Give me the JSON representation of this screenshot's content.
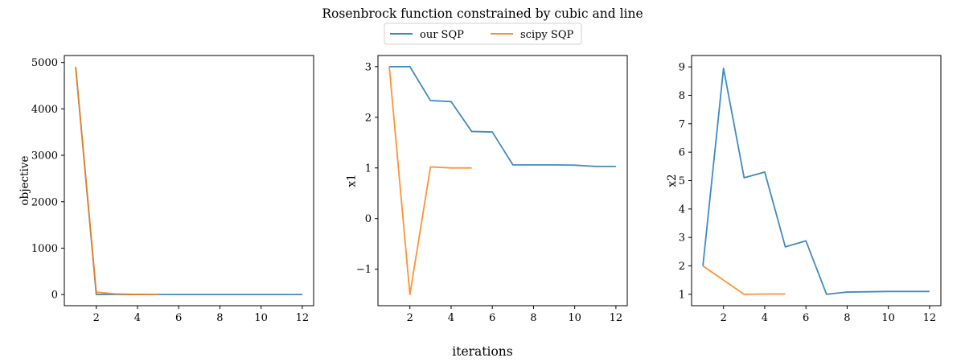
{
  "figure": {
    "title": "Rosenbrock function constrained by cubic and line",
    "xlabel": "iterations",
    "legend": {
      "placement": "top-center",
      "entries": [
        "our SQP",
        "scipy SQP"
      ]
    }
  },
  "colors": {
    "our_sqp": "#1f77b4",
    "scipy_sqp": "#ff7f0e"
  },
  "chart_data": [
    {
      "type": "line",
      "ylabel": "objective",
      "xlim": [
        0.45,
        12.55
      ],
      "ylim": [
        -240,
        5150
      ],
      "xticks": [
        2,
        4,
        6,
        8,
        10,
        12
      ],
      "xtick_labels": [
        "2",
        "4",
        "6",
        "8",
        "10",
        "12"
      ],
      "yticks": [
        0,
        1000,
        2000,
        3000,
        4000,
        5000
      ],
      "ytick_labels": [
        "0",
        "1000",
        "2000",
        "3000",
        "4000",
        "5000"
      ],
      "grid": false,
      "series": [
        {
          "name": "our SQP",
          "x": [
            1,
            2,
            3,
            4,
            5,
            6,
            7,
            8,
            9,
            10,
            11,
            12
          ],
          "y": [
            4904,
            4,
            3,
            2,
            1,
            0.5,
            0.3,
            0.2,
            0.1,
            0.05,
            0.02,
            0.01
          ]
        },
        {
          "name": "scipy SQP",
          "x": [
            1,
            2,
            3,
            4,
            5
          ],
          "y": [
            4904,
            52,
            12,
            2,
            0.5
          ]
        }
      ]
    },
    {
      "type": "line",
      "ylabel": "x1",
      "xlim": [
        0.45,
        12.55
      ],
      "ylim": [
        -1.72,
        3.22
      ],
      "xticks": [
        2,
        4,
        6,
        8,
        10,
        12
      ],
      "xtick_labels": [
        "2",
        "4",
        "6",
        "8",
        "10",
        "12"
      ],
      "yticks": [
        -1,
        0,
        1,
        2,
        3
      ],
      "ytick_labels": [
        "−1",
        "0",
        "1",
        "2",
        "3"
      ],
      "grid": false,
      "series": [
        {
          "name": "our SQP",
          "x": [
            1,
            2,
            3,
            4,
            5,
            6,
            7,
            8,
            9,
            10,
            11,
            12
          ],
          "y": [
            3.0,
            3.0,
            2.33,
            2.31,
            1.72,
            1.71,
            1.06,
            1.06,
            1.06,
            1.055,
            1.03,
            1.03
          ]
        },
        {
          "name": "scipy SQP",
          "x": [
            1,
            2,
            3,
            4,
            5
          ],
          "y": [
            3.0,
            -1.5,
            1.02,
            1.0,
            1.0
          ]
        }
      ]
    },
    {
      "type": "line",
      "ylabel": "x2",
      "xlim": [
        0.45,
        12.55
      ],
      "ylim": [
        0.6,
        9.4
      ],
      "xticks": [
        2,
        4,
        6,
        8,
        10,
        12
      ],
      "xtick_labels": [
        "2",
        "4",
        "6",
        "8",
        "10",
        "12"
      ],
      "yticks": [
        1,
        2,
        3,
        4,
        5,
        6,
        7,
        8,
        9
      ],
      "ytick_labels": [
        "1",
        "2",
        "3",
        "4",
        "5",
        "6",
        "7",
        "8",
        "9"
      ],
      "grid": false,
      "series": [
        {
          "name": "our SQP",
          "x": [
            1,
            2,
            3,
            4,
            5,
            6,
            7,
            8,
            9,
            10,
            11,
            12
          ],
          "y": [
            2.0,
            8.95,
            5.1,
            5.3,
            2.67,
            2.88,
            1.0,
            1.08,
            1.09,
            1.1,
            1.1,
            1.1
          ]
        },
        {
          "name": "scipy SQP",
          "x": [
            1,
            2,
            3,
            4,
            5
          ],
          "y": [
            2.0,
            1.5,
            1.0,
            1.01,
            1.01
          ]
        }
      ]
    }
  ]
}
